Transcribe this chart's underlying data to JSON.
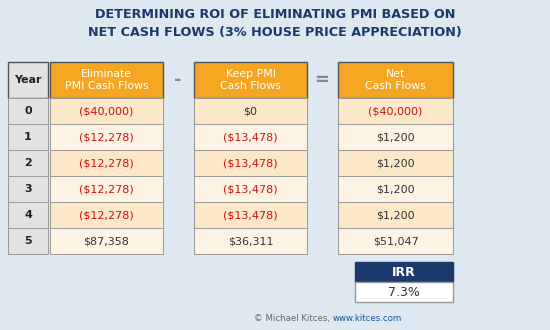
{
  "title": "DETERMINING ROI OF ELIMINATING PMI BASED ON\nNET CASH FLOWS (3% HOUSE PRICE APPRECIATION)",
  "title_color": "#1b3a6b",
  "background_color": "#dde8f0",
  "years": [
    "0",
    "1",
    "2",
    "3",
    "4",
    "5"
  ],
  "col1_header": "Eliminate\nPMI Cash Flows",
  "col2_header": "Keep PMI\nCash Flows",
  "col3_header": "Net\nCash Flows",
  "col1_values": [
    "($40,000)",
    "($12,278)",
    "($12,278)",
    "($12,278)",
    "($12,278)",
    "$87,358"
  ],
  "col2_values": [
    "$0",
    "($13,478)",
    "($13,478)",
    "($13,478)",
    "($13,478)",
    "$36,311"
  ],
  "col3_values": [
    "($40,000)",
    "$1,200",
    "$1,200",
    "$1,200",
    "$1,200",
    "$51,047"
  ],
  "col1_red": [
    true,
    true,
    true,
    true,
    true,
    false
  ],
  "col2_red": [
    false,
    true,
    true,
    true,
    true,
    false
  ],
  "col3_red": [
    true,
    false,
    false,
    false,
    false,
    false
  ],
  "header_bg": "#f5a623",
  "header_text": "#ffffff",
  "row_bg_even": "#fce8c8",
  "row_bg_odd": "#fdf3e3",
  "year_col_bg": "#e2e2e2",
  "year_col_text": "#222222",
  "cell_red_color": "#cc1111",
  "cell_dark_color": "#333333",
  "border_color": "#999999",
  "outer_border_color": "#555555",
  "irr_header_bg": "#1b3a6b",
  "irr_header_text": "#ffffff",
  "irr_value": "7.3%",
  "irr_value_bg": "#ffffff",
  "irr_value_color": "#333333",
  "operator_color": "#888888",
  "footer_text": "© Michael Kitces,",
  "footer_link": "www.kitces.com",
  "footer_text_color": "#666666",
  "footer_link_color": "#1a5599"
}
